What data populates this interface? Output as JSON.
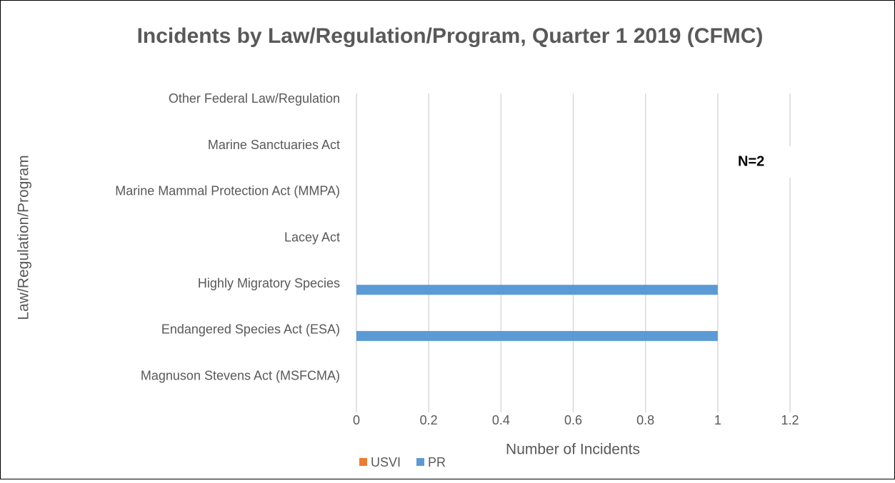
{
  "chart_data": {
    "type": "bar",
    "orientation": "horizontal",
    "title": "Incidents by Law/Regulation/Program,  Quarter 1 2019 (CFMC)",
    "x_label": "Number of Incidents",
    "y_label": "Law/Regulation/Program",
    "annotation": "N=2",
    "categories": [
      "Other Federal Law/Regulation",
      "Marine Sanctuaries Act",
      "Marine Mammal Protection Act (MMPA)",
      "Lacey Act",
      "Highly Migratory Species",
      "Endangered Species Act (ESA)",
      "Magnuson Stevens Act (MSFCMA)"
    ],
    "series": [
      {
        "name": "USVI",
        "color": "#ed7d31",
        "values": [
          0,
          0,
          0,
          0,
          0,
          0,
          0
        ]
      },
      {
        "name": "PR",
        "color": "#5b9bd5",
        "values": [
          0,
          0,
          0,
          0,
          1,
          1,
          0
        ]
      }
    ],
    "xlim": [
      0,
      1.2
    ],
    "xticks": [
      0,
      0.2,
      0.4,
      0.6,
      0.8,
      1,
      1.2
    ],
    "grid": true,
    "legend": "bottom"
  }
}
